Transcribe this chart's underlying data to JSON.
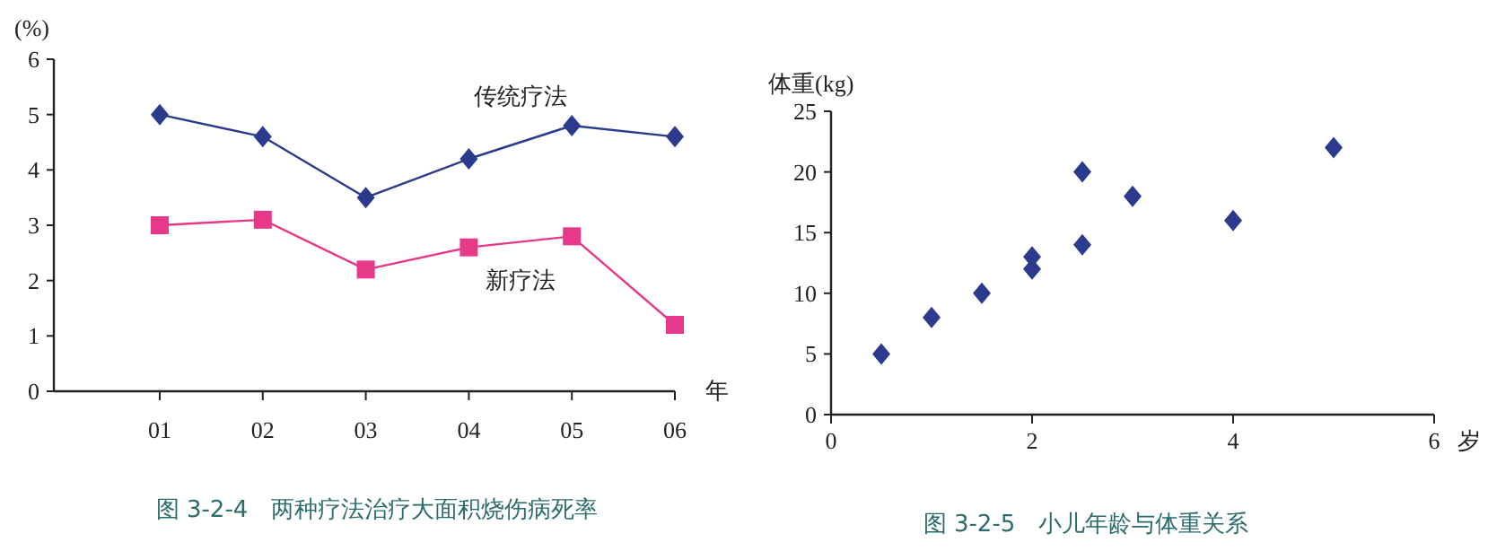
{
  "chart_data": [
    {
      "type": "line",
      "title": "图 3-2-4　两种疗法治疗大面积烧伤病死率",
      "xlabel": "年",
      "ylabel": "(%)",
      "categories": [
        "01",
        "02",
        "03",
        "04",
        "05",
        "06"
      ],
      "ylim": [
        0,
        6
      ],
      "yticks": [
        0,
        1,
        2,
        3,
        4,
        5,
        6
      ],
      "series": [
        {
          "name": "传统疗法",
          "color": "#2b3a8c",
          "marker": "diamond",
          "values": [
            5.0,
            4.6,
            3.5,
            4.2,
            4.8,
            4.6
          ]
        },
        {
          "name": "新疗法",
          "color": "#e8388a",
          "marker": "square",
          "values": [
            3.0,
            3.1,
            2.2,
            2.6,
            2.8,
            1.2
          ]
        }
      ]
    },
    {
      "type": "scatter",
      "title": "图 3-2-5　小儿年龄与体重关系",
      "xlabel": "岁",
      "ylabel": "体重(kg)",
      "marker": "diamond",
      "xlim": [
        0,
        6
      ],
      "xticks": [
        0,
        2,
        4,
        6
      ],
      "ylim": [
        0,
        25
      ],
      "yticks": [
        0,
        5,
        10,
        15,
        20,
        25
      ],
      "series": [
        {
          "color": "#2b3a8c",
          "x": [
            0.5,
            1,
            1.5,
            2,
            2,
            2.5,
            2.5,
            3,
            4,
            5
          ],
          "values": [
            5,
            8,
            10,
            13,
            12,
            20,
            14,
            18,
            16,
            22
          ]
        }
      ]
    }
  ]
}
